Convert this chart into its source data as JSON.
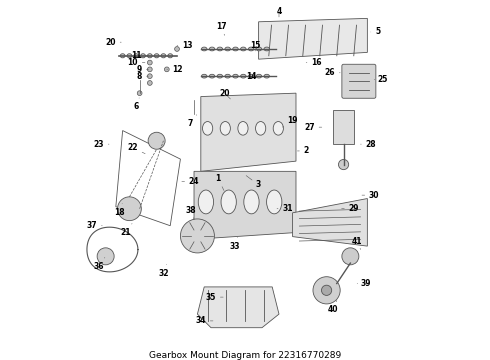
{
  "bg_color": "#ffffff",
  "line_color": "#555555",
  "fig_width": 4.9,
  "fig_height": 3.6,
  "dpi": 100,
  "title_text": "Gearbox Mount Diagram for 22316770289",
  "title_fontsize": 6.5,
  "title_color": "#000000"
}
